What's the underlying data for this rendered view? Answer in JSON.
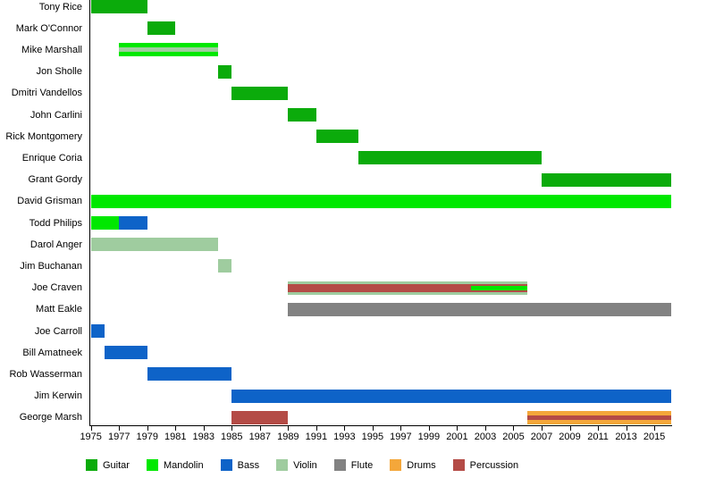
{
  "page": {
    "background": "#ffffff"
  },
  "chart_data": {
    "type": "bar",
    "variant": "horizontal-timeline-gantt",
    "title": "",
    "xlabel": "",
    "ylabel": "",
    "grid": false,
    "legend_position": "bottom",
    "xlim": [
      1975,
      2016.2
    ],
    "x_ticks": [
      1975,
      1977,
      1979,
      1981,
      1983,
      1985,
      1987,
      1989,
      1991,
      1993,
      1995,
      1997,
      1999,
      2001,
      2003,
      2005,
      2007,
      2009,
      2011,
      2013,
      2015
    ],
    "colors": {
      "Guitar": "#0bab0b",
      "Mandolin": "#00e800",
      "Bass": "#0e63c8",
      "Violin": "#9fcc9f",
      "Flute": "#828282",
      "Drums": "#f4a73a",
      "Percussion": "#b44b46"
    },
    "legend": [
      "Guitar",
      "Mandolin",
      "Bass",
      "Violin",
      "Flute",
      "Drums",
      "Percussion"
    ],
    "rows": [
      {
        "name": "Tony Rice",
        "segments": [
          {
            "instrument": "Guitar",
            "start": 1975,
            "end": 1979,
            "band": "full"
          }
        ]
      },
      {
        "name": "Mark O'Connor",
        "segments": [
          {
            "instrument": "Guitar",
            "start": 1979,
            "end": 1981,
            "band": "full"
          }
        ]
      },
      {
        "name": "Mike Marshall",
        "segments": [
          {
            "instrument": "Mandolin",
            "start": 1977,
            "end": 1984,
            "band": "full"
          },
          {
            "instrument": "Violin",
            "start": 1977,
            "end": 1984,
            "band": "thin"
          }
        ]
      },
      {
        "name": "Jon Sholle",
        "segments": [
          {
            "instrument": "Guitar",
            "start": 1984,
            "end": 1985,
            "band": "full"
          }
        ]
      },
      {
        "name": "Dmitri Vandellos",
        "segments": [
          {
            "instrument": "Guitar",
            "start": 1985,
            "end": 1989,
            "band": "full"
          }
        ]
      },
      {
        "name": "John Carlini",
        "segments": [
          {
            "instrument": "Guitar",
            "start": 1989,
            "end": 1991,
            "band": "full"
          }
        ]
      },
      {
        "name": "Rick Montgomery",
        "segments": [
          {
            "instrument": "Guitar",
            "start": 1991,
            "end": 1994,
            "band": "full"
          }
        ]
      },
      {
        "name": "Enrique Coria",
        "segments": [
          {
            "instrument": "Guitar",
            "start": 1994,
            "end": 2007,
            "band": "full"
          }
        ]
      },
      {
        "name": "Grant Gordy",
        "segments": [
          {
            "instrument": "Guitar",
            "start": 2007,
            "end": 2016.2,
            "band": "full"
          }
        ]
      },
      {
        "name": "David Grisman",
        "segments": [
          {
            "instrument": "Mandolin",
            "start": 1975,
            "end": 2016.2,
            "band": "full"
          }
        ]
      },
      {
        "name": "Todd Philips",
        "segments": [
          {
            "instrument": "Mandolin",
            "start": 1975,
            "end": 1977,
            "band": "full"
          },
          {
            "instrument": "Bass",
            "start": 1977,
            "end": 1979,
            "band": "full"
          }
        ]
      },
      {
        "name": "Darol Anger",
        "segments": [
          {
            "instrument": "Violin",
            "start": 1975,
            "end": 1984,
            "band": "full"
          }
        ]
      },
      {
        "name": "Jim Buchanan",
        "segments": [
          {
            "instrument": "Violin",
            "start": 1984,
            "end": 1985,
            "band": "full"
          }
        ]
      },
      {
        "name": "Joe Craven",
        "segments": [
          {
            "instrument": "Violin",
            "start": 1989,
            "end": 2006,
            "band": "full"
          },
          {
            "instrument": "Percussion",
            "start": 1989,
            "end": 2006,
            "band": "mid"
          },
          {
            "instrument": "Mandolin",
            "start": 2002,
            "end": 2006,
            "band": "thin"
          }
        ]
      },
      {
        "name": "Matt Eakle",
        "segments": [
          {
            "instrument": "Flute",
            "start": 1989,
            "end": 2016.2,
            "band": "full"
          }
        ]
      },
      {
        "name": "Joe Carroll",
        "segments": [
          {
            "instrument": "Bass",
            "start": 1975,
            "end": 1976,
            "band": "full"
          }
        ]
      },
      {
        "name": "Bill Amatneek",
        "segments": [
          {
            "instrument": "Bass",
            "start": 1976,
            "end": 1979,
            "band": "full"
          }
        ]
      },
      {
        "name": "Rob Wasserman",
        "segments": [
          {
            "instrument": "Bass",
            "start": 1979,
            "end": 1985,
            "band": "full"
          }
        ]
      },
      {
        "name": "Jim Kerwin",
        "segments": [
          {
            "instrument": "Bass",
            "start": 1985,
            "end": 2016.2,
            "band": "full"
          }
        ]
      },
      {
        "name": "George Marsh",
        "segments": [
          {
            "instrument": "Percussion",
            "start": 1985,
            "end": 1989,
            "band": "full"
          },
          {
            "instrument": "Drums",
            "start": 2006,
            "end": 2016.2,
            "band": "full"
          },
          {
            "instrument": "Percussion",
            "start": 2006,
            "end": 2016.2,
            "band": "thin"
          }
        ]
      }
    ]
  }
}
